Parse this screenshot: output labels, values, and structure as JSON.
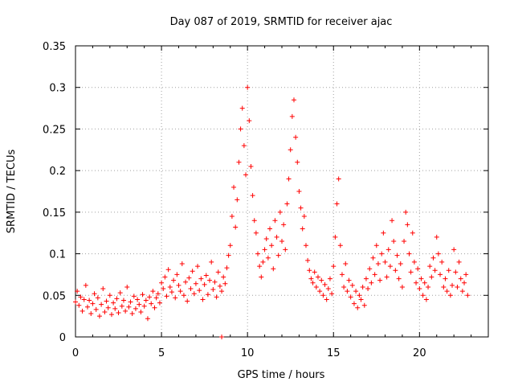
{
  "chart_data": {
    "type": "scatter",
    "title": "Day 087 of 2019, SRMTID for receiver ajac",
    "xlabel": "GPS time / hours",
    "ylabel": "SRMTID / TECUs",
    "xlim": [
      0,
      24
    ],
    "ylim": [
      0,
      0.35
    ],
    "x_ticks": [
      0,
      5,
      10,
      15,
      20
    ],
    "x_tick_labels": [
      "0",
      "5",
      "10",
      "15",
      "20"
    ],
    "y_ticks": [
      0,
      0.05,
      0.1,
      0.15,
      0.2,
      0.25,
      0.3,
      0.35
    ],
    "y_tick_labels": [
      "0",
      "0.05",
      "0.1",
      "0.15",
      "0.2",
      "0.25",
      "0.3",
      "0.35"
    ],
    "grid": true,
    "marker": "plus",
    "color": "#ff0000",
    "series": [
      {
        "name": "SRMTID",
        "points": [
          [
            0.0,
            0.042
          ],
          [
            0.1,
            0.055
          ],
          [
            0.2,
            0.038
          ],
          [
            0.3,
            0.048
          ],
          [
            0.4,
            0.031
          ],
          [
            0.5,
            0.045
          ],
          [
            0.6,
            0.062
          ],
          [
            0.7,
            0.036
          ],
          [
            0.8,
            0.044
          ],
          [
            0.9,
            0.028
          ],
          [
            1.0,
            0.04
          ],
          [
            1.1,
            0.052
          ],
          [
            1.2,
            0.033
          ],
          [
            1.3,
            0.047
          ],
          [
            1.4,
            0.025
          ],
          [
            1.5,
            0.039
          ],
          [
            1.6,
            0.058
          ],
          [
            1.7,
            0.03
          ],
          [
            1.8,
            0.043
          ],
          [
            1.9,
            0.035
          ],
          [
            2.0,
            0.05
          ],
          [
            2.1,
            0.027
          ],
          [
            2.2,
            0.041
          ],
          [
            2.3,
            0.034
          ],
          [
            2.4,
            0.046
          ],
          [
            2.5,
            0.029
          ],
          [
            2.6,
            0.053
          ],
          [
            2.7,
            0.037
          ],
          [
            2.8,
            0.044
          ],
          [
            2.9,
            0.031
          ],
          [
            3.0,
            0.06
          ],
          [
            3.1,
            0.036
          ],
          [
            3.2,
            0.042
          ],
          [
            3.3,
            0.028
          ],
          [
            3.4,
            0.049
          ],
          [
            3.5,
            0.034
          ],
          [
            3.6,
            0.045
          ],
          [
            3.7,
            0.039
          ],
          [
            3.8,
            0.03
          ],
          [
            3.9,
            0.051
          ],
          [
            4.0,
            0.037
          ],
          [
            4.1,
            0.044
          ],
          [
            4.2,
            0.022
          ],
          [
            4.3,
            0.048
          ],
          [
            4.4,
            0.04
          ],
          [
            4.5,
            0.055
          ],
          [
            4.6,
            0.035
          ],
          [
            4.7,
            0.047
          ],
          [
            4.8,
            0.052
          ],
          [
            4.9,
            0.041
          ],
          [
            5.0,
            0.065
          ],
          [
            5.1,
            0.058
          ],
          [
            5.2,
            0.072
          ],
          [
            5.3,
            0.049
          ],
          [
            5.4,
            0.081
          ],
          [
            5.5,
            0.06
          ],
          [
            5.6,
            0.054
          ],
          [
            5.7,
            0.068
          ],
          [
            5.8,
            0.047
          ],
          [
            5.9,
            0.075
          ],
          [
            6.0,
            0.062
          ],
          [
            6.1,
            0.055
          ],
          [
            6.2,
            0.088
          ],
          [
            6.3,
            0.05
          ],
          [
            6.4,
            0.066
          ],
          [
            6.5,
            0.043
          ],
          [
            6.6,
            0.071
          ],
          [
            6.7,
            0.058
          ],
          [
            6.8,
            0.079
          ],
          [
            6.9,
            0.052
          ],
          [
            7.0,
            0.064
          ],
          [
            7.1,
            0.085
          ],
          [
            7.2,
            0.056
          ],
          [
            7.3,
            0.07
          ],
          [
            7.4,
            0.045
          ],
          [
            7.5,
            0.063
          ],
          [
            7.6,
            0.074
          ],
          [
            7.7,
            0.051
          ],
          [
            7.8,
            0.068
          ],
          [
            7.9,
            0.09
          ],
          [
            8.0,
            0.057
          ],
          [
            8.1,
            0.066
          ],
          [
            8.2,
            0.048
          ],
          [
            8.3,
            0.078
          ],
          [
            8.4,
            0.061
          ],
          [
            8.5,
            0.055
          ],
          [
            8.6,
            0.072
          ],
          [
            8.7,
            0.064
          ],
          [
            8.8,
            0.083
          ],
          [
            8.9,
            0.098
          ],
          [
            9.0,
            0.11
          ],
          [
            9.1,
            0.145
          ],
          [
            9.2,
            0.18
          ],
          [
            9.3,
            0.132
          ],
          [
            9.4,
            0.165
          ],
          [
            9.5,
            0.21
          ],
          [
            9.6,
            0.25
          ],
          [
            9.7,
            0.275
          ],
          [
            9.8,
            0.23
          ],
          [
            9.9,
            0.195
          ],
          [
            10.0,
            0.3
          ],
          [
            10.1,
            0.26
          ],
          [
            10.2,
            0.205
          ],
          [
            10.3,
            0.17
          ],
          [
            10.4,
            0.14
          ],
          [
            10.5,
            0.125
          ],
          [
            10.6,
            0.1
          ],
          [
            10.7,
            0.085
          ],
          [
            10.8,
            0.072
          ],
          [
            10.9,
            0.09
          ],
          [
            11.0,
            0.105
          ],
          [
            11.1,
            0.118
          ],
          [
            11.2,
            0.095
          ],
          [
            11.3,
            0.13
          ],
          [
            11.4,
            0.11
          ],
          [
            11.5,
            0.082
          ],
          [
            11.6,
            0.14
          ],
          [
            11.7,
            0.12
          ],
          [
            11.8,
            0.098
          ],
          [
            11.9,
            0.15
          ],
          [
            12.0,
            0.115
          ],
          [
            12.1,
            0.135
          ],
          [
            12.2,
            0.105
          ],
          [
            12.3,
            0.16
          ],
          [
            12.4,
            0.19
          ],
          [
            12.5,
            0.225
          ],
          [
            12.6,
            0.265
          ],
          [
            12.7,
            0.285
          ],
          [
            12.8,
            0.24
          ],
          [
            12.9,
            0.21
          ],
          [
            13.0,
            0.175
          ],
          [
            13.1,
            0.155
          ],
          [
            13.2,
            0.13
          ],
          [
            13.3,
            0.145
          ],
          [
            13.4,
            0.11
          ],
          [
            13.5,
            0.092
          ],
          [
            13.6,
            0.08
          ],
          [
            13.7,
            0.07
          ],
          [
            13.8,
            0.065
          ],
          [
            13.9,
            0.078
          ],
          [
            14.0,
            0.06
          ],
          [
            14.1,
            0.072
          ],
          [
            14.2,
            0.055
          ],
          [
            14.3,
            0.068
          ],
          [
            14.4,
            0.05
          ],
          [
            14.5,
            0.063
          ],
          [
            14.6,
            0.045
          ],
          [
            14.7,
            0.058
          ],
          [
            14.8,
            0.07
          ],
          [
            14.9,
            0.052
          ],
          [
            15.0,
            0.085
          ],
          [
            15.1,
            0.12
          ],
          [
            15.2,
            0.16
          ],
          [
            15.3,
            0.19
          ],
          [
            15.4,
            0.11
          ],
          [
            15.5,
            0.075
          ],
          [
            15.6,
            0.06
          ],
          [
            15.7,
            0.088
          ],
          [
            15.8,
            0.055
          ],
          [
            15.9,
            0.068
          ],
          [
            16.0,
            0.048
          ],
          [
            16.1,
            0.062
          ],
          [
            16.2,
            0.04
          ],
          [
            16.3,
            0.055
          ],
          [
            16.4,
            0.035
          ],
          [
            16.5,
            0.05
          ],
          [
            16.6,
            0.045
          ],
          [
            16.7,
            0.06
          ],
          [
            16.8,
            0.038
          ],
          [
            16.9,
            0.07
          ],
          [
            17.0,
            0.058
          ],
          [
            17.1,
            0.082
          ],
          [
            17.2,
            0.065
          ],
          [
            17.3,
            0.095
          ],
          [
            17.4,
            0.075
          ],
          [
            17.5,
            0.11
          ],
          [
            17.6,
            0.088
          ],
          [
            17.7,
            0.068
          ],
          [
            17.8,
            0.1
          ],
          [
            17.9,
            0.125
          ],
          [
            18.0,
            0.09
          ],
          [
            18.1,
            0.072
          ],
          [
            18.2,
            0.105
          ],
          [
            18.3,
            0.085
          ],
          [
            18.4,
            0.14
          ],
          [
            18.5,
            0.115
          ],
          [
            18.6,
            0.08
          ],
          [
            18.7,
            0.098
          ],
          [
            18.8,
            0.07
          ],
          [
            18.9,
            0.088
          ],
          [
            19.0,
            0.06
          ],
          [
            19.1,
            0.115
          ],
          [
            19.2,
            0.15
          ],
          [
            19.3,
            0.135
          ],
          [
            19.4,
            0.1
          ],
          [
            19.5,
            0.078
          ],
          [
            19.6,
            0.125
          ],
          [
            19.7,
            0.09
          ],
          [
            19.8,
            0.065
          ],
          [
            19.9,
            0.082
          ],
          [
            20.0,
            0.058
          ],
          [
            20.1,
            0.07
          ],
          [
            20.2,
            0.05
          ],
          [
            20.3,
            0.065
          ],
          [
            20.4,
            0.045
          ],
          [
            20.5,
            0.06
          ],
          [
            20.6,
            0.085
          ],
          [
            20.7,
            0.072
          ],
          [
            20.8,
            0.095
          ],
          [
            20.9,
            0.08
          ],
          [
            21.0,
            0.12
          ],
          [
            21.1,
            0.1
          ],
          [
            21.2,
            0.075
          ],
          [
            21.3,
            0.09
          ],
          [
            21.4,
            0.06
          ],
          [
            21.5,
            0.07
          ],
          [
            21.6,
            0.055
          ],
          [
            21.7,
            0.08
          ],
          [
            21.8,
            0.05
          ],
          [
            21.9,
            0.062
          ],
          [
            22.0,
            0.105
          ],
          [
            22.1,
            0.078
          ],
          [
            22.2,
            0.06
          ],
          [
            22.3,
            0.09
          ],
          [
            22.4,
            0.07
          ],
          [
            22.5,
            0.055
          ],
          [
            22.6,
            0.065
          ],
          [
            22.7,
            0.075
          ],
          [
            22.8,
            0.05
          ],
          [
            8.5,
            0.0
          ]
        ]
      }
    ]
  }
}
